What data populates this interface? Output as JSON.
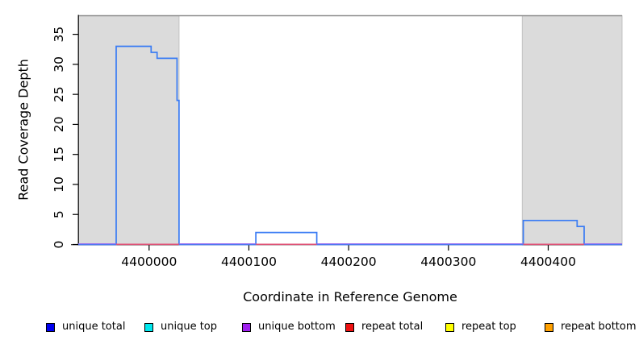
{
  "chart_data": {
    "type": "line",
    "subtype": "step-coverage",
    "xlabel": "Coordinate in Reference Genome",
    "ylabel": "Read Coverage Depth",
    "xlim": [
      4399929,
      4400474
    ],
    "ylim": [
      0,
      38.1
    ],
    "x_ticks": [
      4400000,
      4400100,
      4400200,
      4400300,
      4400400
    ],
    "y_ticks": [
      0,
      5,
      10,
      15,
      20,
      25,
      30,
      35
    ],
    "grid": false,
    "shaded_regions": [
      {
        "start": 4399929,
        "end": 4400030
      },
      {
        "start": 4400374,
        "end": 4400474
      }
    ],
    "series": [
      {
        "name": "unique total",
        "segments": [
          [
            4399929,
            4399967,
            0
          ],
          [
            4399967,
            4400002,
            33
          ],
          [
            4400002,
            4400008,
            32
          ],
          [
            4400008,
            4400028,
            31
          ],
          [
            4400028,
            4400030,
            24
          ],
          [
            4400030,
            4400107,
            0
          ],
          [
            4400107,
            4400168,
            2
          ],
          [
            4400168,
            4400375,
            0
          ],
          [
            4400375,
            4400429,
            4
          ],
          [
            4400429,
            4400436,
            3
          ],
          [
            4400436,
            4400474,
            0
          ]
        ]
      },
      {
        "name": "repeat total",
        "segments": [
          [
            4399967,
            4400030,
            0
          ],
          [
            4400107,
            4400168,
            0
          ],
          [
            4400375,
            4400436,
            0
          ]
        ]
      }
    ],
    "colors": {
      "unique_total_line": "#3B7CF4",
      "repeat_total_line": "#DF5277",
      "baseline_overlay_top": "#9465EE",
      "region_fill": "#DBDBDB",
      "region_border": "#C2C2C2",
      "plot_top_border": "#8C8C8C",
      "axis": "#000000"
    },
    "legend": [
      {
        "label": "unique total",
        "color": "#0000F0"
      },
      {
        "label": "unique top",
        "color": "#00E8EE"
      },
      {
        "label": "unique bottom",
        "color": "#A020F0"
      },
      {
        "label": "repeat total",
        "color": "#EE1111"
      },
      {
        "label": "repeat top",
        "color": "#FFFF00"
      },
      {
        "label": "repeat bottom",
        "color": "#FFA000"
      }
    ],
    "legend_position": "bottom"
  }
}
